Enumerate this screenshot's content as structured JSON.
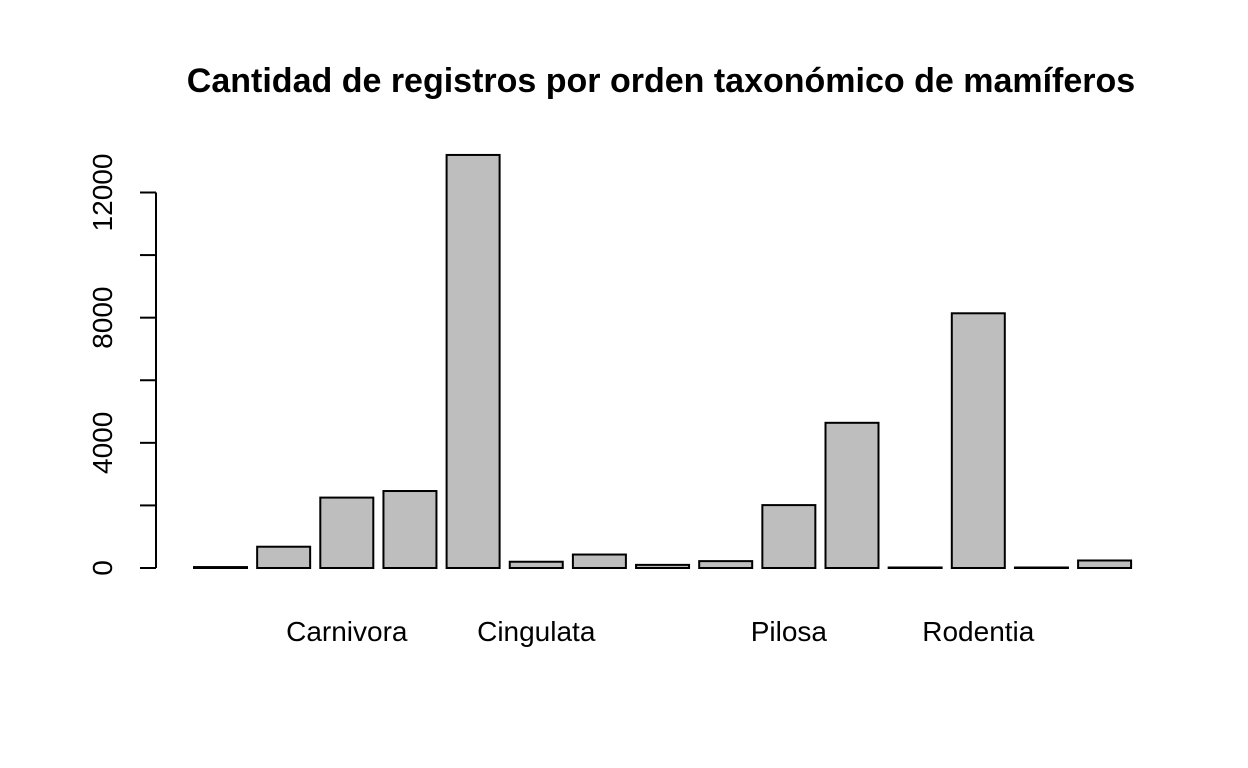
{
  "chart_data": {
    "type": "bar",
    "title": "Cantidad de registros por orden taxonómico de mamíferos",
    "xlabel": "",
    "ylabel": "",
    "categories": [
      "",
      "",
      "Carnivora",
      "",
      "",
      "Cingulata",
      "",
      "",
      "",
      "Pilosa",
      "",
      "",
      "Rodentia",
      "",
      ""
    ],
    "values": [
      30,
      680,
      2250,
      2460,
      13200,
      200,
      430,
      100,
      220,
      2010,
      4640,
      5,
      8140,
      5,
      240
    ],
    "yticks": [
      0,
      4000,
      8000,
      12000
    ],
    "yticks_minor": [
      2000,
      6000,
      10000
    ],
    "ylim": [
      0,
      13200
    ],
    "grid": false,
    "legend": "none",
    "colors": {
      "bar_fill": "#bebebe",
      "bar_stroke": "#000000",
      "axis": "#000000",
      "background": "#ffffff"
    }
  }
}
